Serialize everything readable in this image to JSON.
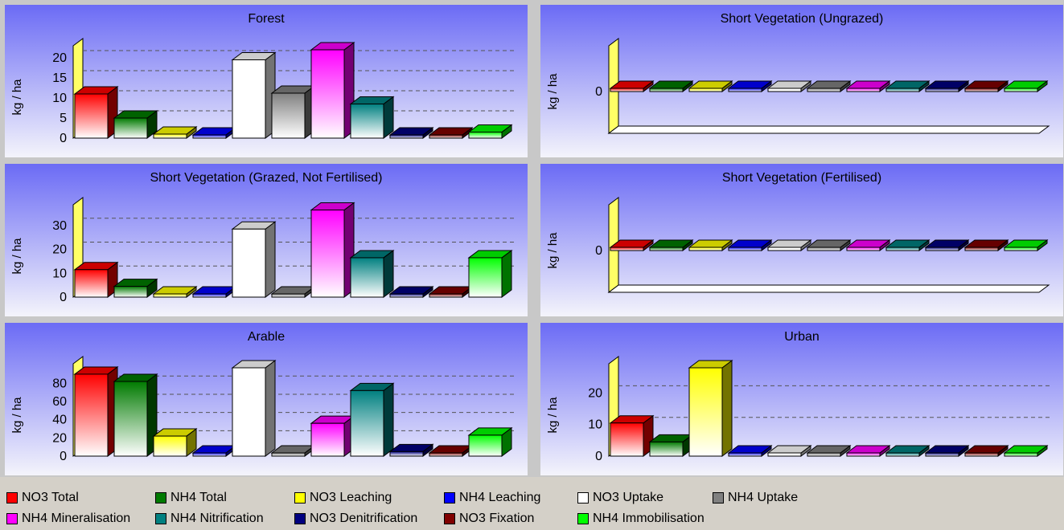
{
  "series_names": [
    "NO3 Total",
    "NH4 Total",
    "NO3 Leaching",
    "NH4 Leaching",
    "NO3 Uptake",
    "NH4 Uptake",
    "NH4 Mineralisation",
    "NH4 Nitrification",
    "NO3 Denitrification",
    "NO3 Fixation",
    "NH4 Immobilisation"
  ],
  "colors": {
    "NO3 Total": "#ff0000",
    "NH4 Total": "#007a00",
    "NO3 Leaching": "#ffff00",
    "NH4 Leaching": "#0000ff",
    "NO3 Uptake": "#ffffff",
    "NH4 Uptake": "#808080",
    "NH4 Mineralisation": "#ff00ff",
    "NH4 Nitrification": "#008080",
    "NO3 Denitrification": "#000080",
    "NO3 Fixation": "#800000",
    "NH4 Immobilisation": "#00ff00"
  },
  "chart_data": [
    {
      "type": "bar",
      "title": "Forest",
      "ylabel": "kg / ha",
      "ylim": [
        0,
        22
      ],
      "ticks": [
        0,
        5,
        10,
        15,
        20
      ],
      "categories": [
        "NO3 Total",
        "NH4 Total",
        "NO3 Leaching",
        "NH4 Leaching",
        "NO3 Uptake",
        "NH4 Uptake",
        "NH4 Mineralisation",
        "NH4 Nitrification",
        "NO3 Denitrification",
        "NO3 Fixation",
        "NH4 Immobilisation"
      ],
      "values": [
        11,
        5,
        1,
        0.5,
        19.5,
        11.2,
        22,
        8.5,
        0.3,
        0.2,
        1.5
      ]
    },
    {
      "type": "bar",
      "title": "Short Vegetation (Ungrazed)",
      "ylabel": "kg / ha",
      "ylim": [
        0,
        1
      ],
      "ticks": [
        0
      ],
      "categories": [
        "NO3 Total",
        "NH4 Total",
        "NO3 Leaching",
        "NH4 Leaching",
        "NO3 Uptake",
        "NH4 Uptake",
        "NH4 Mineralisation",
        "NH4 Nitrification",
        "NO3 Denitrification",
        "NO3 Fixation",
        "NH4 Immobilisation"
      ],
      "values": [
        0,
        0,
        0,
        0,
        0,
        0,
        0,
        0,
        0,
        0,
        0
      ]
    },
    {
      "type": "bar",
      "title": "Short Vegetation (Grazed, Not Fertilised)",
      "ylabel": "kg / ha",
      "ylim": [
        0,
        37
      ],
      "ticks": [
        0,
        10,
        20,
        30
      ],
      "categories": [
        "NO3 Total",
        "NH4 Total",
        "NO3 Leaching",
        "NH4 Leaching",
        "NO3 Uptake",
        "NH4 Uptake",
        "NH4 Mineralisation",
        "NH4 Nitrification",
        "NO3 Denitrification",
        "NO3 Fixation",
        "NH4 Immobilisation"
      ],
      "values": [
        11.5,
        4.5,
        1.2,
        0.8,
        28.5,
        0.5,
        36.5,
        16.5,
        0.3,
        0.3,
        16.5
      ]
    },
    {
      "type": "bar",
      "title": "Short Vegetation (Fertilised)",
      "ylabel": "kg / ha",
      "ylim": [
        0,
        1
      ],
      "ticks": [
        0
      ],
      "categories": [
        "NO3 Total",
        "NH4 Total",
        "NO3 Leaching",
        "NH4 Leaching",
        "NO3 Uptake",
        "NH4 Uptake",
        "NH4 Mineralisation",
        "NH4 Nitrification",
        "NO3 Denitrification",
        "NO3 Fixation",
        "NH4 Immobilisation"
      ],
      "values": [
        0,
        0,
        0,
        0,
        0,
        0,
        0,
        0,
        0,
        0,
        0
      ]
    },
    {
      "type": "bar",
      "title": "Arable",
      "ylabel": "kg / ha",
      "ylim": [
        0,
        97
      ],
      "ticks": [
        0,
        20,
        40,
        60,
        80
      ],
      "categories": [
        "NO3 Total",
        "NH4 Total",
        "NO3 Leaching",
        "NH4 Leaching",
        "NO3 Uptake",
        "NH4 Uptake",
        "NH4 Mineralisation",
        "NH4 Nitrification",
        "NO3 Denitrification",
        "NO3 Fixation",
        "NH4 Immobilisation"
      ],
      "values": [
        90,
        82,
        22,
        2,
        97,
        1,
        36,
        72,
        5,
        1,
        23
      ]
    },
    {
      "type": "bar",
      "title": "Urban",
      "ylabel": "kg / ha",
      "ylim": [
        0,
        28
      ],
      "ticks": [
        0,
        10,
        20
      ],
      "categories": [
        "NO3 Total",
        "NH4 Total",
        "NO3 Leaching",
        "NH4 Leaching",
        "NO3 Uptake",
        "NH4 Uptake",
        "NH4 Mineralisation",
        "NH4 Nitrification",
        "NO3 Denitrification",
        "NO3 Fixation",
        "NH4 Immobilisation"
      ],
      "values": [
        10.5,
        4.5,
        28,
        0.8,
        0,
        0,
        0,
        0,
        0,
        0,
        0
      ]
    }
  ]
}
